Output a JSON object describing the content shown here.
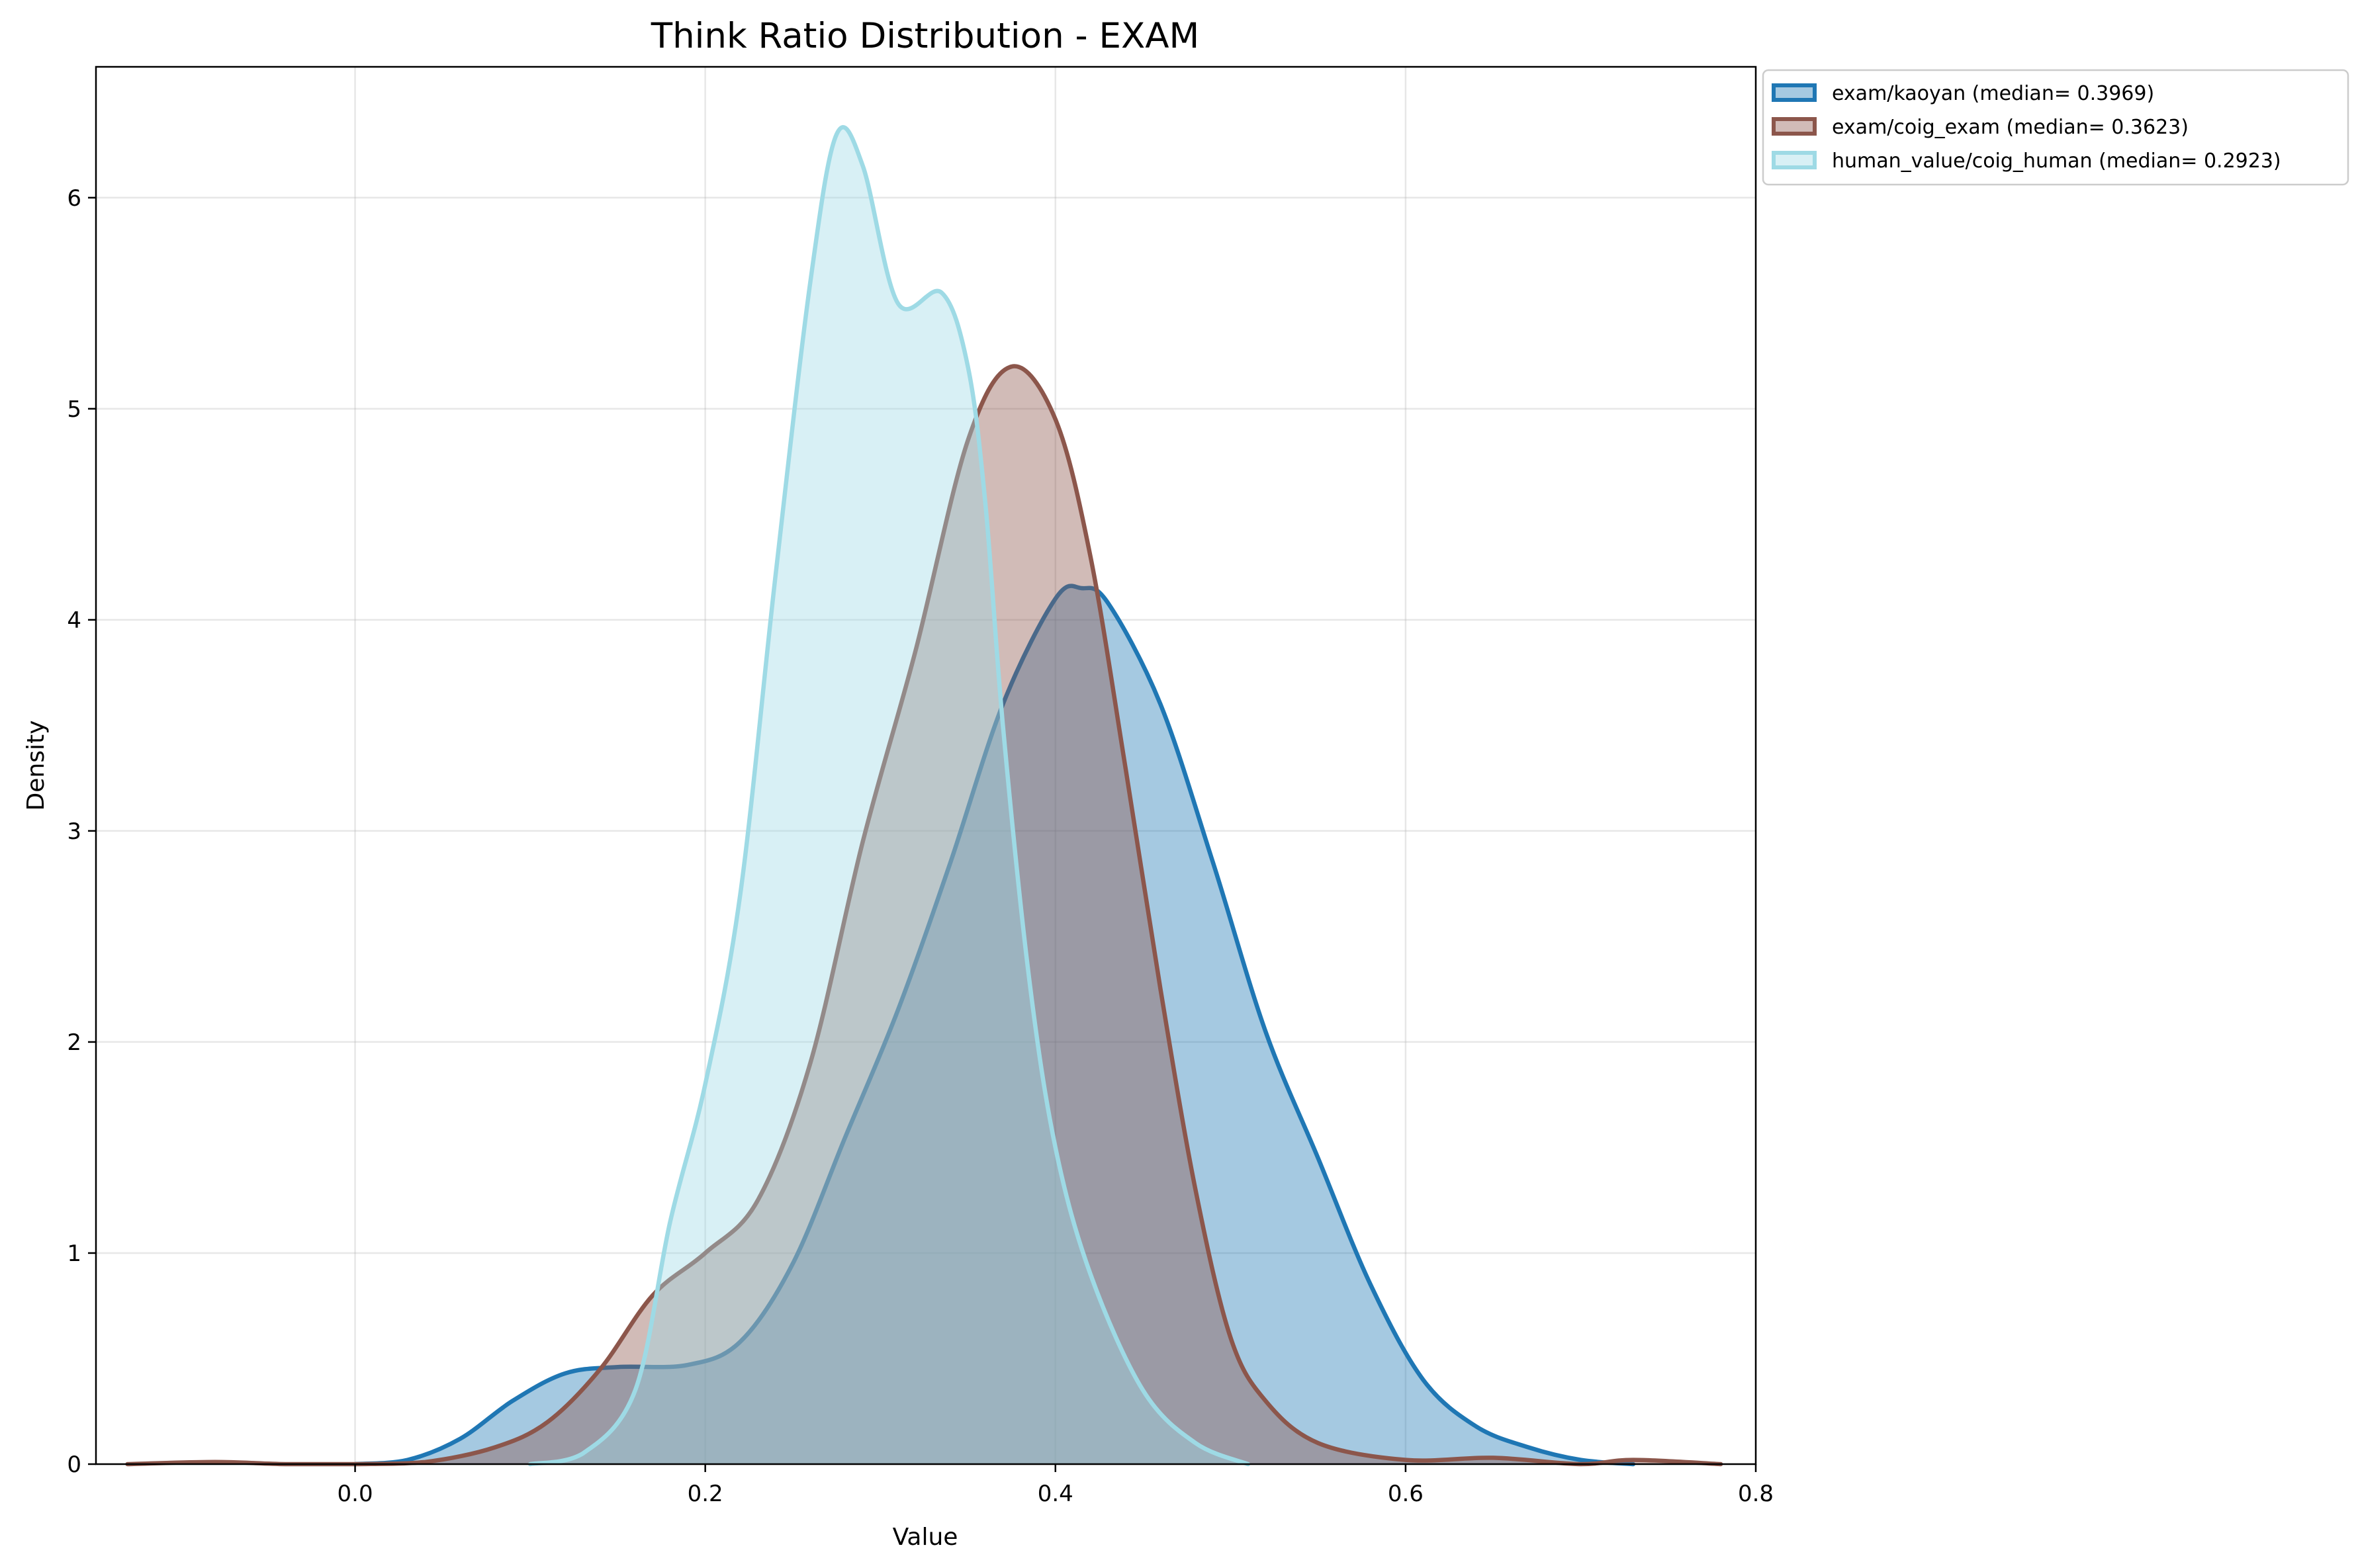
{
  "chart_data": {
    "type": "area",
    "title": "Think Ratio Distribution - EXAM",
    "xlabel": "Value",
    "ylabel": "Density",
    "xlim": [
      -0.148,
      0.8
    ],
    "ylim": [
      0,
      6.62
    ],
    "xticks": [
      0.0,
      0.2,
      0.4,
      0.6,
      0.8
    ],
    "xtick_labels": [
      "0.0",
      "0.2",
      "0.4",
      "0.6",
      "0.8"
    ],
    "yticks": [
      0,
      1,
      2,
      3,
      4,
      5,
      6
    ],
    "ytick_labels": [
      "0",
      "1",
      "2",
      "3",
      "4",
      "5",
      "6"
    ],
    "grid": true,
    "legend_position": "outside-top-right",
    "series": [
      {
        "name": "exam/kaoyan (median= 0.3969)",
        "color": "#1f77b4",
        "fill_opacity": 0.4,
        "points": [
          [
            0.0,
            0.0
          ],
          [
            0.03,
            0.02
          ],
          [
            0.06,
            0.12
          ],
          [
            0.09,
            0.3
          ],
          [
            0.12,
            0.43
          ],
          [
            0.15,
            0.46
          ],
          [
            0.19,
            0.47
          ],
          [
            0.22,
            0.58
          ],
          [
            0.25,
            0.95
          ],
          [
            0.28,
            1.55
          ],
          [
            0.31,
            2.15
          ],
          [
            0.34,
            2.85
          ],
          [
            0.37,
            3.6
          ],
          [
            0.4,
            4.1
          ],
          [
            0.415,
            4.15
          ],
          [
            0.43,
            4.08
          ],
          [
            0.46,
            3.6
          ],
          [
            0.49,
            2.85
          ],
          [
            0.52,
            2.05
          ],
          [
            0.55,
            1.45
          ],
          [
            0.58,
            0.85
          ],
          [
            0.61,
            0.4
          ],
          [
            0.64,
            0.18
          ],
          [
            0.67,
            0.08
          ],
          [
            0.7,
            0.02
          ],
          [
            0.73,
            0.0
          ]
        ]
      },
      {
        "name": "exam/coig_exam (median= 0.3623)",
        "color": "#8c564b",
        "fill_opacity": 0.4,
        "points": [
          [
            -0.13,
            0.0
          ],
          [
            -0.08,
            0.01
          ],
          [
            -0.04,
            0.0
          ],
          [
            0.0,
            0.0
          ],
          [
            0.04,
            0.01
          ],
          [
            0.08,
            0.08
          ],
          [
            0.11,
            0.2
          ],
          [
            0.14,
            0.45
          ],
          [
            0.17,
            0.8
          ],
          [
            0.2,
            1.0
          ],
          [
            0.23,
            1.25
          ],
          [
            0.26,
            1.9
          ],
          [
            0.29,
            2.95
          ],
          [
            0.32,
            3.85
          ],
          [
            0.35,
            4.85
          ],
          [
            0.375,
            5.2
          ],
          [
            0.4,
            4.95
          ],
          [
            0.42,
            4.3
          ],
          [
            0.44,
            3.3
          ],
          [
            0.46,
            2.25
          ],
          [
            0.48,
            1.3
          ],
          [
            0.5,
            0.6
          ],
          [
            0.52,
            0.3
          ],
          [
            0.55,
            0.1
          ],
          [
            0.6,
            0.02
          ],
          [
            0.65,
            0.03
          ],
          [
            0.7,
            0.0
          ],
          [
            0.73,
            0.02
          ],
          [
            0.78,
            0.0
          ]
        ]
      },
      {
        "name": "human_value/coig_human (median= 0.2923)",
        "color": "#9edae5",
        "fill_opacity": 0.4,
        "points": [
          [
            0.1,
            0.0
          ],
          [
            0.13,
            0.05
          ],
          [
            0.16,
            0.35
          ],
          [
            0.18,
            1.15
          ],
          [
            0.2,
            1.8
          ],
          [
            0.22,
            2.7
          ],
          [
            0.24,
            4.2
          ],
          [
            0.26,
            5.6
          ],
          [
            0.275,
            6.3
          ],
          [
            0.29,
            6.15
          ],
          [
            0.31,
            5.5
          ],
          [
            0.335,
            5.55
          ],
          [
            0.35,
            5.2
          ],
          [
            0.36,
            4.55
          ],
          [
            0.37,
            3.5
          ],
          [
            0.385,
            2.3
          ],
          [
            0.4,
            1.5
          ],
          [
            0.42,
            0.9
          ],
          [
            0.45,
            0.35
          ],
          [
            0.48,
            0.1
          ],
          [
            0.51,
            0.0
          ]
        ]
      }
    ]
  }
}
